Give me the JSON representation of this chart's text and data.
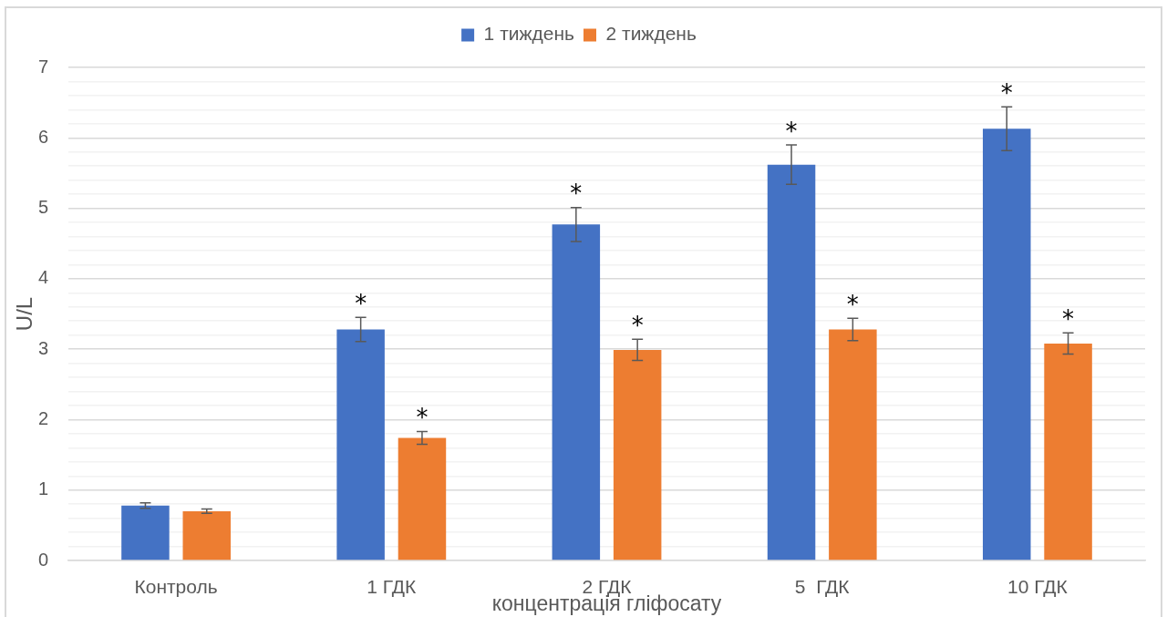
{
  "chart_data": {
    "type": "bar",
    "categories": [
      "Контроль",
      "1 ГДК",
      "2 ГДК",
      "5  ГДК",
      "10 ГДК"
    ],
    "series": [
      {
        "name": "1 тиждень",
        "color": "#4472c4",
        "values": [
          0.78,
          3.28,
          4.77,
          5.62,
          6.13
        ],
        "errors": [
          0.04,
          0.17,
          0.24,
          0.28,
          0.31
        ],
        "value_labels": [
          null,
          "*",
          "*",
          "*",
          "*"
        ]
      },
      {
        "name": "2 тиждень",
        "color": "#ed7d31",
        "values": [
          0.7,
          1.74,
          2.99,
          3.28,
          3.08
        ],
        "errors": [
          0.03,
          0.09,
          0.15,
          0.16,
          0.15
        ],
        "value_labels": [
          null,
          "*",
          "*",
          "*",
          "*"
        ]
      }
    ],
    "xlabel": "концентрація гліфосату",
    "ylabel": "U/L",
    "ylim": [
      0,
      7
    ],
    "yticks": [
      0,
      {
        "value": 0.2,
        "label": null
      },
      {
        "value": 0.4,
        "label": null
      },
      {
        "value": 0.6,
        "label": null
      },
      {
        "value": 0.8,
        "label": null
      },
      1,
      {
        "value": 1.2,
        "label": null
      },
      {
        "value": 1.4,
        "label": null
      },
      {
        "value": 1.6,
        "label": null
      },
      {
        "value": 1.8,
        "label": null
      },
      2,
      {
        "value": 2.2,
        "label": null
      },
      {
        "value": 2.4,
        "label": null
      },
      {
        "value": 2.6,
        "label": null
      },
      {
        "value": 2.8,
        "label": null
      },
      3,
      {
        "value": 3.2,
        "label": null
      },
      {
        "value": 3.4,
        "label": null
      },
      {
        "value": 3.6,
        "label": null
      },
      {
        "value": 3.8,
        "label": null
      },
      4,
      {
        "value": 4.2,
        "label": null
      },
      {
        "value": 4.4,
        "label": null
      },
      {
        "value": 4.6,
        "label": null
      },
      {
        "value": 4.8,
        "label": null
      },
      5,
      {
        "value": 5.2,
        "label": null
      },
      {
        "value": 5.4,
        "label": null
      },
      {
        "value": 5.6,
        "label": null
      },
      {
        "value": 5.8,
        "label": null
      },
      6,
      {
        "value": 6.2,
        "label": null
      },
      {
        "value": 6.4,
        "label": null
      },
      {
        "value": 6.6,
        "label": null
      },
      {
        "value": 6.8,
        "label": null
      },
      7
    ],
    "grid": "y",
    "legend": "top"
  }
}
